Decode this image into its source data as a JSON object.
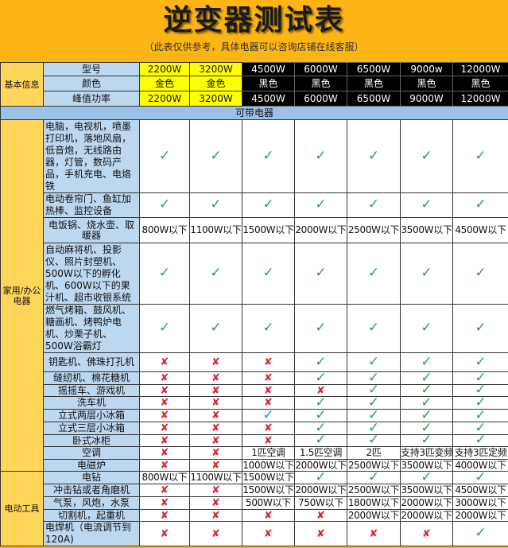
{
  "header": {
    "title": "逆变器测试表",
    "subtitle": "（此表仅供参考，具体电器可以咨询店铺在线客服）"
  },
  "colors": {
    "background": "#FDB515",
    "category": "#FFD55A",
    "item": "#BDD7EE",
    "gold_model": "#FFFF00",
    "black_model": "#000000",
    "section": "#9BC2E6",
    "check": "#2E9E4F",
    "cross": "#D9262C"
  },
  "basic_info": {
    "category": "基本信息",
    "rows": [
      {
        "label": "型号",
        "values": [
          "2200W",
          "3200W",
          "4500W",
          "6000W",
          "6500W",
          "9000w",
          "12000W"
        ]
      },
      {
        "label": "颜色",
        "values": [
          "金色",
          "金色",
          "黑色",
          "黑色",
          "黑色",
          "黑色",
          "黑色"
        ]
      },
      {
        "label": "峰值功率",
        "values": [
          "2200W",
          "3200W",
          "4500W",
          "6000W",
          "6500W",
          "9000W",
          "12000W"
        ]
      }
    ],
    "color_classes": [
      "gold",
      "gold",
      "black",
      "black",
      "black",
      "black",
      "black"
    ]
  },
  "section_title": "可带电器",
  "groups": [
    {
      "category": "家用/办公电器",
      "rows": [
        {
          "label": "电脑，电视机，喷墨打印机，落地风扇，低音炮，无线路由器，灯管，数码产品，手机充电、电烙铁",
          "left": true,
          "values": [
            "check",
            "check",
            "check",
            "check",
            "check",
            "check",
            "check"
          ]
        },
        {
          "label": "电动卷帘门、鱼缸加热棒、监控设备",
          "left": true,
          "values": [
            "check",
            "check",
            "check",
            "check",
            "check",
            "check",
            "check"
          ]
        },
        {
          "label": "电饭锅、烧水壶、取暖器",
          "left": false,
          "values": [
            "800W以下",
            "1100W以下",
            "1500W以下",
            "2000W以下",
            "2500W以下",
            "3500W以下",
            "4500W以下"
          ]
        },
        {
          "label": "自动麻将机、投影仪、照片封塑机、500W以下的孵化机、600W以下的果汁机、超市收银系统",
          "left": true,
          "values": [
            "check",
            "check",
            "check",
            "check",
            "check",
            "check",
            "check"
          ]
        },
        {
          "label": "燃气烤箱、鼓风机、糖画机、烤鸭炉电机、炒栗子机、500W浴霸灯",
          "left": true,
          "values": [
            "check",
            "check",
            "check",
            "check",
            "check",
            "check",
            "check"
          ]
        },
        {
          "label": "钥匙机、佛珠打孔机",
          "values": [
            "cross",
            "cross",
            "cross",
            "check",
            "check",
            "check",
            "check"
          ]
        },
        {
          "label": "缝纫机、棉花糖机",
          "values": [
            "cross",
            "cross",
            "cross",
            "check",
            "check",
            "check",
            "check"
          ]
        },
        {
          "label": "摇摇车、游戏机",
          "values": [
            "cross",
            "cross",
            "cross",
            "cross",
            "check",
            "check",
            "check"
          ]
        },
        {
          "label": "洗车机",
          "values": [
            "cross",
            "cross",
            "cross",
            "check",
            "check",
            "check",
            "check"
          ]
        },
        {
          "label": "立式两层小冰箱",
          "values": [
            "cross",
            "cross",
            "check",
            "check",
            "check",
            "check",
            "check"
          ]
        },
        {
          "label": "立式三层小冰箱",
          "values": [
            "cross",
            "cross",
            "cross",
            "check",
            "check",
            "check",
            "check"
          ]
        },
        {
          "label": "卧式冰柜",
          "values": [
            "cross",
            "cross",
            "cross",
            "check",
            "check",
            "check",
            "check"
          ]
        },
        {
          "label": "空调",
          "values": [
            "cross",
            "cross",
            "1匹空调",
            "1.5匹空调",
            "2匹",
            "支持3匹变频",
            "支持3匹定频"
          ]
        },
        {
          "label": "电磁炉",
          "values": [
            "cross",
            "cross",
            "1000W以下",
            "2000W以下",
            "2500W以下",
            "3500W以下",
            "4000W以下"
          ]
        }
      ]
    },
    {
      "category": "电动工具",
      "rows": [
        {
          "label": "电钻",
          "values": [
            "800W以下",
            "1100W以下",
            "1500W以下",
            "check",
            "check",
            "check",
            "check"
          ]
        },
        {
          "label": "冲击钻或者角磨机",
          "values": [
            "cross",
            "cross",
            "1500W以下",
            "2000W以下",
            "2500W以下",
            "3500W以下",
            "4500W以下"
          ]
        },
        {
          "label": "气泵，风炮，水泵",
          "values": [
            "cross",
            "cross",
            "500W以下",
            "750W以下",
            "1800W以下",
            "2000W以下",
            "3000W以下"
          ]
        },
        {
          "label": "切割机，起重机",
          "values": [
            "cross",
            "cross",
            "cross",
            "cross",
            "2000W以下",
            "2000W以下",
            "2000W以下"
          ]
        },
        {
          "label": "电焊机（电流调节到120A)",
          "left": true,
          "values": [
            "cross",
            "cross",
            "cross",
            "cross",
            "cross",
            "cross",
            "check"
          ]
        }
      ]
    }
  ]
}
